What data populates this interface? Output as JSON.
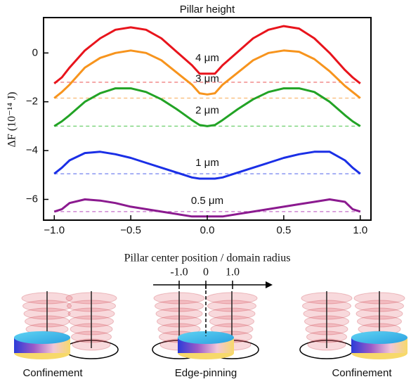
{
  "chart_data": {
    "type": "line",
    "title": "Pillar height",
    "x_label": "Pillar center position / domain radius",
    "y_label": "ΔF (10⁻¹⁴ J)",
    "x": [
      -1,
      -0.95,
      -0.9,
      -0.8,
      -0.7,
      -0.6,
      -0.5,
      -0.4,
      -0.3,
      -0.2,
      -0.1,
      -0.05,
      0,
      0.05,
      0.1,
      0.2,
      0.3,
      0.4,
      0.5,
      0.6,
      0.7,
      0.8,
      0.9,
      0.95,
      1
    ],
    "series": [
      {
        "name": "4 μm",
        "color": "#e8141c",
        "values": [
          -1.25,
          -1.0,
          -0.6,
          0.1,
          0.6,
          0.95,
          1.05,
          0.95,
          0.6,
          0.05,
          -0.5,
          -0.85,
          -0.85,
          -0.85,
          -0.5,
          0.05,
          0.6,
          0.95,
          1.1,
          1.0,
          0.6,
          0.0,
          -0.7,
          -1.0,
          -1.25
        ]
      },
      {
        "name": "3 μm",
        "color": "#f7941d",
        "values": [
          -1.85,
          -1.6,
          -1.3,
          -0.6,
          -0.2,
          0.0,
          0.1,
          0.0,
          -0.3,
          -0.8,
          -1.3,
          -1.65,
          -1.7,
          -1.65,
          -1.3,
          -0.8,
          -0.3,
          0.0,
          0.1,
          0.05,
          -0.25,
          -0.75,
          -1.35,
          -1.6,
          -1.85
        ]
      },
      {
        "name": "2 μm",
        "color": "#22a325",
        "values": [
          -3.0,
          -2.8,
          -2.55,
          -2.0,
          -1.65,
          -1.45,
          -1.45,
          -1.6,
          -1.9,
          -2.3,
          -2.75,
          -2.95,
          -3.0,
          -2.95,
          -2.75,
          -2.3,
          -1.9,
          -1.6,
          -1.45,
          -1.45,
          -1.6,
          -2.0,
          -2.55,
          -2.8,
          -3.0
        ]
      },
      {
        "name": "1 μm",
        "color": "#1a2fe6",
        "values": [
          -4.95,
          -4.7,
          -4.4,
          -4.1,
          -4.05,
          -4.15,
          -4.3,
          -4.5,
          -4.7,
          -4.9,
          -5.1,
          -5.15,
          -5.15,
          -5.15,
          -5.1,
          -4.9,
          -4.7,
          -4.5,
          -4.3,
          -4.15,
          -4.05,
          -4.05,
          -4.4,
          -4.7,
          -4.95
        ]
      },
      {
        "name": "0.5 μm",
        "color": "#8b1a8f",
        "values": [
          -6.5,
          -6.4,
          -6.15,
          -6.0,
          -6.05,
          -6.15,
          -6.3,
          -6.4,
          -6.5,
          -6.6,
          -6.7,
          -6.7,
          -6.7,
          -6.7,
          -6.7,
          -6.6,
          -6.5,
          -6.4,
          -6.3,
          -6.2,
          -6.1,
          -6.0,
          -6.1,
          -6.4,
          -6.5
        ]
      }
    ],
    "reference_lines": [
      {
        "color": "#f08080",
        "value": -1.2
      },
      {
        "color": "#f9b872",
        "value": -1.85
      },
      {
        "color": "#6fcf6f",
        "value": -3.0
      },
      {
        "color": "#7f8cf0",
        "value": -4.95
      },
      {
        "color": "#c46fc8",
        "value": -6.5
      }
    ],
    "xlim": [
      -1.07,
      1.07
    ],
    "ylim": [
      -6.85,
      1.45
    ],
    "xticks": [
      {
        "value": -1,
        "label": "−1.0"
      },
      {
        "value": -0.5,
        "label": "−0.5"
      },
      {
        "value": 0,
        "label": "0.0"
      },
      {
        "value": 0.5,
        "label": "0.5"
      },
      {
        "value": 1,
        "label": "1.0"
      }
    ],
    "yticks": [
      0,
      {
        "value": -2,
        "label": "−2"
      },
      {
        "value": -4,
        "label": "−4"
      },
      {
        "value": -6,
        "label": "−6"
      }
    ],
    "grid": false
  },
  "illustration": {
    "axis_ticks": [
      {
        "value": -1,
        "label": "-1.0"
      },
      {
        "value": 0,
        "label": "0"
      },
      {
        "value": 1,
        "label": "1.0"
      }
    ],
    "captions": [
      "Confinement",
      "Edge-pinning",
      "Confinement"
    ]
  }
}
